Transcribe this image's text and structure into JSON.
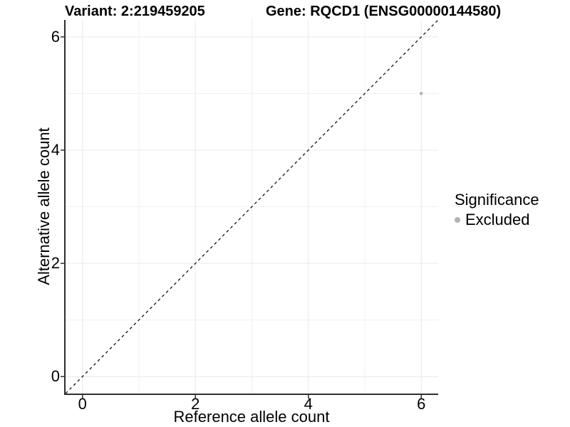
{
  "header": {
    "variant_title": "Variant: 2:219459205",
    "gene_title": "Gene: RQCD1 (ENSG00000144580)"
  },
  "axes": {
    "x_label": "Reference allele count",
    "y_label": "Alternative allele count",
    "x_tick_labels": [
      "0",
      "2",
      "4",
      "6"
    ],
    "y_tick_labels": [
      "0",
      "2",
      "4",
      "6"
    ]
  },
  "legend": {
    "title": "Significance",
    "items": [
      {
        "label": "Excluded",
        "color": "#b3b3b3"
      }
    ]
  },
  "chart_data": {
    "type": "scatter",
    "title": "Variant: 2:219459205   Gene: RQCD1 (ENSG00000144580)",
    "xlabel": "Reference allele count",
    "ylabel": "Alternative allele count",
    "xlim": [
      -0.3,
      6.3
    ],
    "ylim": [
      -0.3,
      6.3
    ],
    "major_ticks": [
      0,
      2,
      4,
      6
    ],
    "minor_gridlines": [
      1,
      3,
      5
    ],
    "grid": true,
    "legend_position": "right",
    "series": [
      {
        "name": "Excluded",
        "color": "#b3b3b3",
        "points": [
          [
            6,
            5
          ]
        ]
      }
    ],
    "reference_line": {
      "equation": "y = x",
      "style": "dashed",
      "color": "#000000",
      "from": [
        -0.3,
        -0.3
      ],
      "to": [
        6.3,
        6.3
      ]
    },
    "colors": {
      "major_grid": "#e8e8e8",
      "minor_grid": "#f0f0f0",
      "axis_line": "#2f2f2f",
      "point": "#b3b3b3"
    }
  }
}
